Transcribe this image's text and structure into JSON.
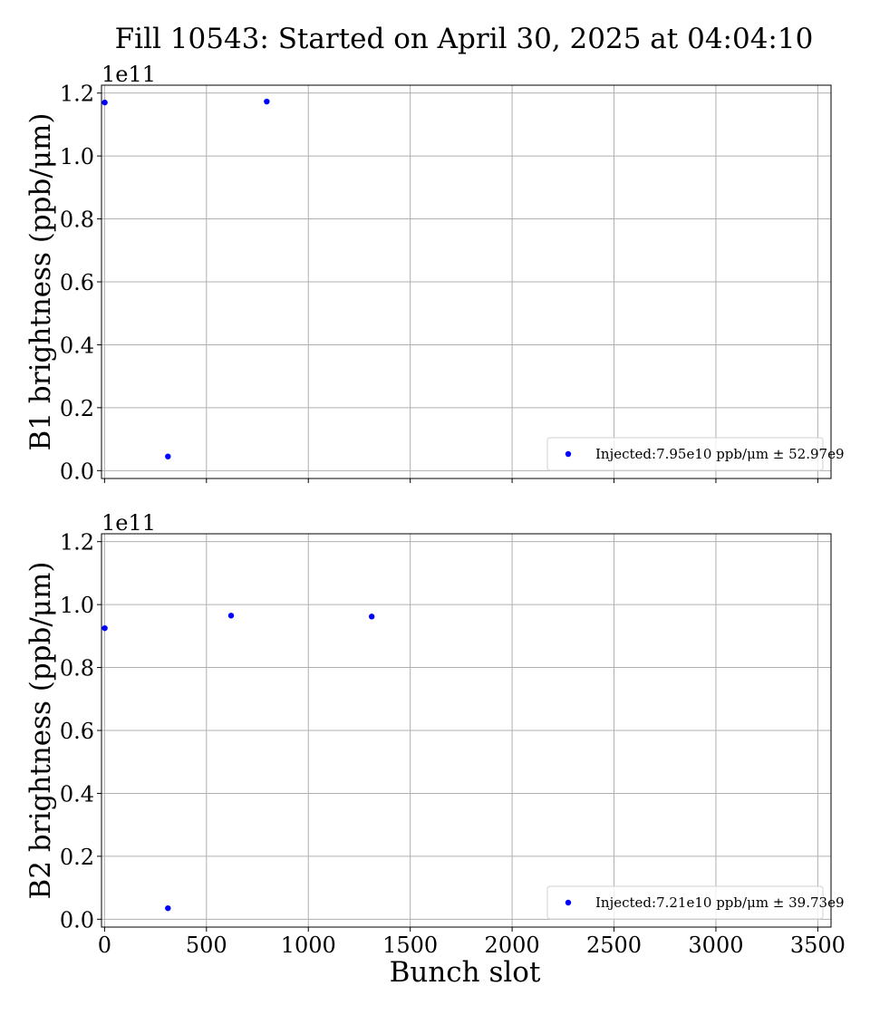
{
  "figure": {
    "title": "Fill 10543: Started on April 30, 2025 at 04:04:10",
    "xlabel": "Bunch slot"
  },
  "chart_data": [
    {
      "type": "scatter",
      "ylabel": "B1 brightness (ppb/μm)",
      "offset_text": "1e11",
      "xlim": [
        -15,
        3565
      ],
      "ylim": [
        -0.025,
        1.225
      ],
      "y_scale_factor": "1e11",
      "x_ticks": [
        0,
        500,
        1000,
        1500,
        2000,
        2500,
        3000,
        3500
      ],
      "y_ticks": [
        0.0,
        0.2,
        0.4,
        0.6,
        0.8,
        1.0,
        1.2
      ],
      "y_tick_labels": [
        "0.0",
        "0.2",
        "0.4",
        "0.6",
        "0.8",
        "1.0",
        "1.2"
      ],
      "grid": true,
      "legend_position": "lower-right",
      "series": [
        {
          "name": "Injected:7.95e10 ppb/μm ± 52.97e9",
          "color": "#0000ff",
          "x": [
            1,
            311,
            796
          ],
          "y": [
            1.17,
            0.045,
            1.173
          ]
        }
      ]
    },
    {
      "type": "scatter",
      "ylabel": "B2 brightness (ppb/μm)",
      "offset_text": "1e11",
      "xlim": [
        -15,
        3565
      ],
      "ylim": [
        -0.025,
        1.225
      ],
      "y_scale_factor": "1e11",
      "x_ticks": [
        0,
        500,
        1000,
        1500,
        2000,
        2500,
        3000,
        3500
      ],
      "x_tick_labels": [
        "0",
        "500",
        "1000",
        "1500",
        "2000",
        "2500",
        "3000",
        "3500"
      ],
      "y_ticks": [
        0.0,
        0.2,
        0.4,
        0.6,
        0.8,
        1.0,
        1.2
      ],
      "y_tick_labels": [
        "0.0",
        "0.2",
        "0.4",
        "0.6",
        "0.8",
        "1.0",
        "1.2"
      ],
      "grid": true,
      "legend_position": "lower-right",
      "series": [
        {
          "name": "Injected:7.21e10 ppb/μm ± 39.73e9",
          "color": "#0000ff",
          "x": [
            1,
            311,
            621,
            1311
          ],
          "y": [
            0.925,
            0.035,
            0.965,
            0.962
          ]
        }
      ]
    }
  ]
}
